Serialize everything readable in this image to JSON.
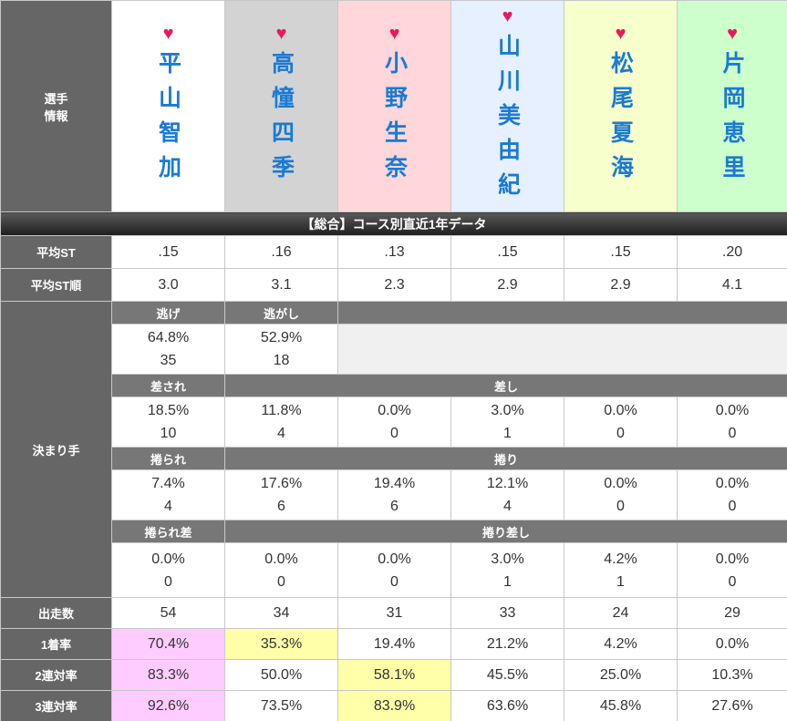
{
  "header": {
    "label_lines": [
      "選手",
      "情報"
    ],
    "heart": "♥",
    "players": [
      {
        "name": "平山智加",
        "color": "#ffffff"
      },
      {
        "name": "高憧四季",
        "color": "#d3d3d3"
      },
      {
        "name": "小野生奈",
        "color": "#ffd6d9"
      },
      {
        "name": "山川美由紀",
        "color": "#e6f0ff"
      },
      {
        "name": "松尾夏海",
        "color": "#f7ffcc"
      },
      {
        "name": "片岡恵里",
        "color": "#ccffcc"
      }
    ]
  },
  "section_title": "【総合】コース別直近1年データ",
  "avg_st": {
    "label": "平均ST",
    "values": [
      ".15",
      ".16",
      ".13",
      ".15",
      ".15",
      ".20"
    ]
  },
  "avg_st_rank": {
    "label": "平均ST順",
    "values": [
      "3.0",
      "3.1",
      "2.3",
      "2.9",
      "2.9",
      "4.1"
    ]
  },
  "kimarite": {
    "label": "決まり手",
    "groups": [
      {
        "headers": [
          "逃げ",
          "逃がし"
        ],
        "values": [
          [
            "64.8%",
            "35"
          ],
          [
            "52.9%",
            "18"
          ]
        ]
      },
      {
        "headers": [
          "差され",
          "差し"
        ],
        "values": [
          [
            "18.5%",
            "10"
          ],
          [
            "11.8%",
            "4"
          ],
          [
            "0.0%",
            "0"
          ],
          [
            "3.0%",
            "1"
          ],
          [
            "0.0%",
            "0"
          ],
          [
            "0.0%",
            "0"
          ]
        ]
      },
      {
        "headers": [
          "捲られ",
          "捲り"
        ],
        "values": [
          [
            "7.4%",
            "4"
          ],
          [
            "17.6%",
            "6"
          ],
          [
            "19.4%",
            "6"
          ],
          [
            "12.1%",
            "4"
          ],
          [
            "0.0%",
            "0"
          ],
          [
            "0.0%",
            "0"
          ]
        ]
      },
      {
        "headers": [
          "捲られ差",
          "捲り差し"
        ],
        "values": [
          [
            "0.0%",
            "0"
          ],
          [
            "0.0%",
            "0"
          ],
          [
            "0.0%",
            "0"
          ],
          [
            "3.0%",
            "1"
          ],
          [
            "4.2%",
            "1"
          ],
          [
            "0.0%",
            "0"
          ]
        ]
      }
    ]
  },
  "stats": [
    {
      "label": "出走数",
      "values": [
        "54",
        "34",
        "31",
        "33",
        "24",
        "29"
      ],
      "highlight": [
        null,
        null,
        null,
        null,
        null,
        null
      ]
    },
    {
      "label": "1着率",
      "values": [
        "70.4%",
        "35.3%",
        "19.4%",
        "21.2%",
        "4.2%",
        "0.0%"
      ],
      "highlight": [
        "#ffccff",
        "#ffffaa",
        null,
        null,
        null,
        null
      ]
    },
    {
      "label": "2連対率",
      "values": [
        "83.3%",
        "50.0%",
        "58.1%",
        "45.5%",
        "25.0%",
        "10.3%"
      ],
      "highlight": [
        "#ffccff",
        null,
        "#ffffaa",
        null,
        null,
        null
      ]
    },
    {
      "label": "3連対率",
      "values": [
        "92.6%",
        "73.5%",
        "83.9%",
        "63.6%",
        "45.8%",
        "27.6%"
      ],
      "highlight": [
        "#ffccff",
        null,
        "#ffffaa",
        null,
        null,
        null
      ]
    }
  ]
}
